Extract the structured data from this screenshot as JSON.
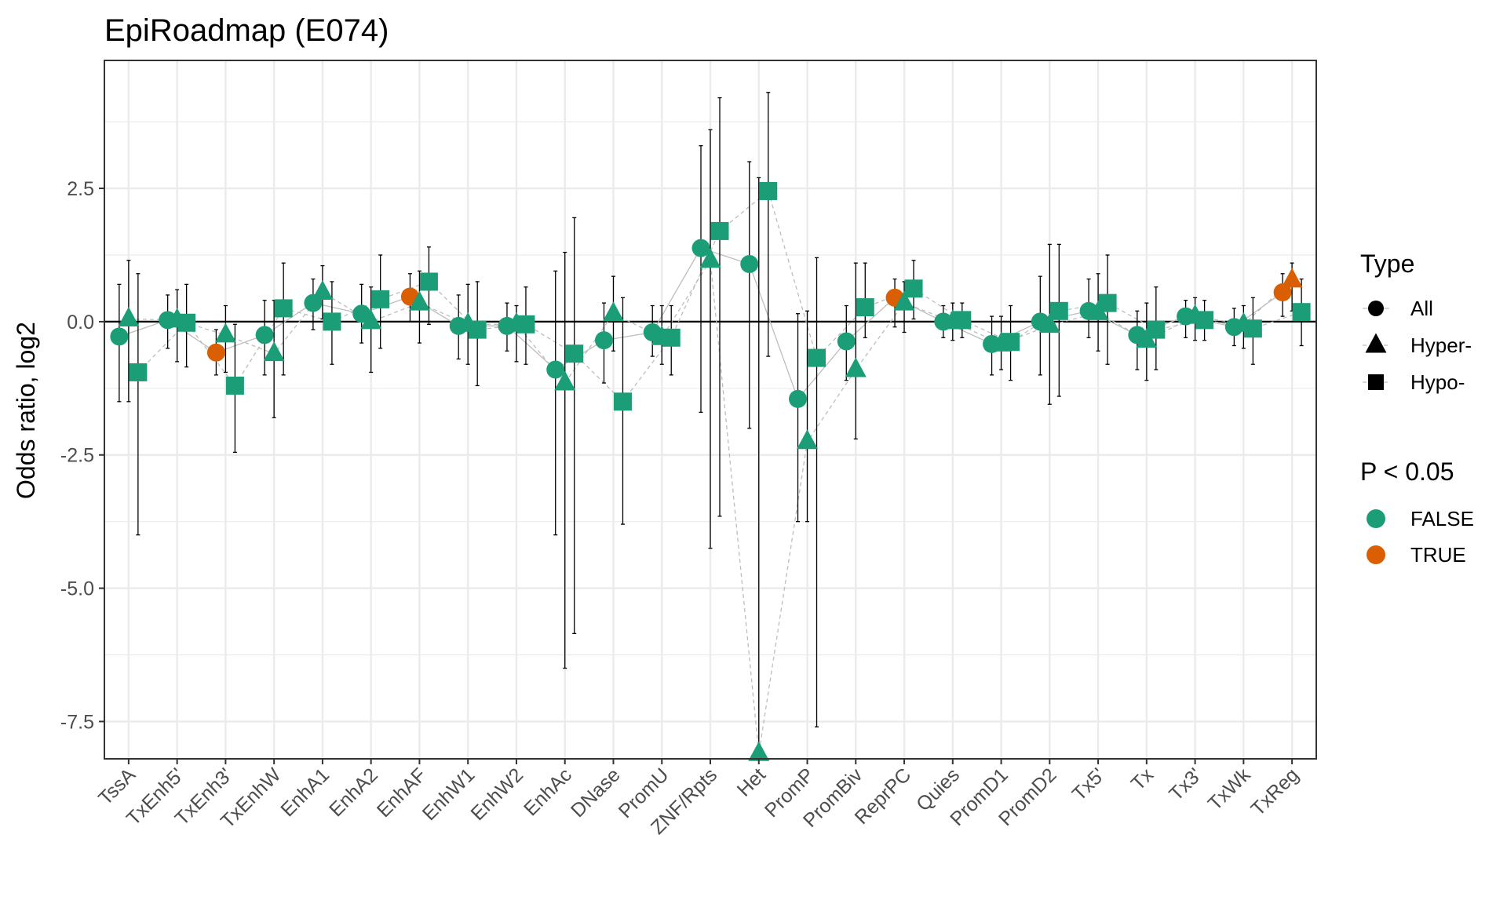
{
  "chart_data": {
    "type": "scatter",
    "title": "EpiRoadmap (E074)",
    "xlabel": "",
    "ylabel": "Odds ratio, log2",
    "ylim": [
      -8.2,
      4.9
    ],
    "yticks": [
      2.5,
      0.0,
      -2.5,
      -5.0,
      -7.5
    ],
    "ytick_labels": [
      "2.5",
      "0.0",
      "-2.5",
      "-5.0",
      "-7.5"
    ],
    "categories": [
      "TssA",
      "TxEnh5'",
      "TxEnh3'",
      "TxEnhW",
      "EnhA1",
      "EnhA2",
      "EnhAF",
      "EnhW1",
      "EnhW2",
      "EnhAc",
      "DNase",
      "PromU",
      "ZNF/Rpts",
      "Het",
      "PromP",
      "PromBiv",
      "ReprPC",
      "Quies",
      "PromD1",
      "PromD2",
      "Tx5'",
      "Tx",
      "Tx3'",
      "TxWk",
      "TxReg"
    ],
    "series": [
      {
        "name": "All",
        "shape": "circle",
        "values": [
          -0.28,
          0.03,
          -0.58,
          -0.25,
          0.35,
          0.15,
          0.47,
          -0.08,
          -0.08,
          -0.9,
          -0.35,
          -0.2,
          1.38,
          1.08,
          -1.45,
          -0.37,
          0.45,
          0.0,
          -0.42,
          0.0,
          0.2,
          -0.25,
          0.1,
          -0.1,
          0.55
        ],
        "lower": [
          -1.5,
          -0.5,
          -1.0,
          -1.0,
          -0.15,
          -0.4,
          0.0,
          -0.7,
          -0.55,
          -4.0,
          -1.15,
          -0.65,
          -1.7,
          -2.0,
          -3.75,
          -1.1,
          -0.1,
          -0.3,
          -1.0,
          -1.0,
          -0.3,
          -0.9,
          -0.3,
          -0.45,
          0.1
        ],
        "upper": [
          0.7,
          0.5,
          -0.15,
          0.4,
          0.8,
          0.7,
          0.9,
          0.5,
          0.35,
          0.95,
          0.35,
          0.3,
          3.3,
          3.0,
          0.15,
          0.3,
          0.8,
          0.3,
          0.1,
          0.85,
          0.8,
          0.2,
          0.4,
          0.25,
          0.9
        ],
        "significant": [
          false,
          false,
          true,
          false,
          false,
          false,
          true,
          false,
          false,
          false,
          false,
          false,
          false,
          false,
          false,
          false,
          true,
          false,
          false,
          false,
          false,
          false,
          false,
          false,
          true
        ]
      },
      {
        "name": "Hyper-",
        "shape": "triangle",
        "values": [
          0.05,
          0.03,
          -0.25,
          -0.6,
          0.55,
          0.0,
          0.35,
          -0.05,
          -0.05,
          -1.15,
          0.15,
          -0.3,
          1.15,
          -8.1,
          -2.25,
          -0.9,
          0.35,
          0.0,
          -0.42,
          -0.07,
          0.17,
          -0.35,
          0.1,
          -0.05,
          0.78
        ],
        "lower": [
          -1.5,
          -0.75,
          -0.95,
          -1.8,
          0.05,
          -0.95,
          -0.4,
          -0.8,
          -0.75,
          -6.5,
          -0.55,
          -0.8,
          -4.25,
          -8.2,
          -3.75,
          -2.2,
          -0.2,
          -0.35,
          -0.9,
          -1.55,
          -0.55,
          -1.1,
          -0.35,
          -0.5,
          0.2
        ],
        "upper": [
          1.15,
          0.6,
          0.3,
          0.4,
          1.05,
          0.65,
          0.95,
          0.7,
          0.3,
          1.3,
          0.85,
          0.3,
          3.6,
          2.7,
          0.2,
          1.1,
          0.75,
          0.35,
          0.1,
          1.45,
          0.9,
          0.35,
          0.45,
          0.3,
          1.1
        ],
        "significant": [
          false,
          false,
          false,
          false,
          false,
          false,
          false,
          false,
          false,
          false,
          false,
          false,
          false,
          false,
          false,
          false,
          false,
          false,
          false,
          false,
          false,
          false,
          false,
          false,
          true
        ]
      },
      {
        "name": "Hypo-",
        "shape": "square",
        "values": [
          -0.95,
          -0.02,
          -1.2,
          0.25,
          0.0,
          0.42,
          0.75,
          -0.15,
          -0.05,
          -0.6,
          -1.5,
          -0.3,
          1.7,
          2.45,
          -0.68,
          0.27,
          0.62,
          0.03,
          -0.38,
          0.2,
          0.35,
          -0.15,
          0.03,
          -0.13,
          0.18
        ],
        "lower": [
          -4.0,
          -0.85,
          -2.45,
          -1.0,
          -0.8,
          -0.5,
          -0.05,
          -1.2,
          -0.8,
          -5.85,
          -3.8,
          -1.0,
          -3.65,
          -0.65,
          -7.6,
          -0.3,
          0.05,
          -0.3,
          -1.1,
          -1.4,
          -0.8,
          -0.9,
          -0.35,
          -0.8,
          -0.45
        ],
        "upper": [
          0.9,
          0.7,
          -0.05,
          1.1,
          0.75,
          1.25,
          1.4,
          0.75,
          0.65,
          1.95,
          0.45,
          0.3,
          4.2,
          4.3,
          1.2,
          1.1,
          1.15,
          0.35,
          0.3,
          1.45,
          1.25,
          0.65,
          0.4,
          0.45,
          0.8
        ]
      }
    ],
    "legend": {
      "placement": "right",
      "type_title": "Type",
      "type_items": [
        "All",
        "Hyper-",
        "Hypo-"
      ],
      "p_title": "P < 0.05",
      "p_items": [
        "FALSE",
        "TRUE"
      ]
    },
    "colors": {
      "false": "#1b9e77",
      "true": "#d95f02",
      "grid": "#ebebeb",
      "connector": "#bdbdbd",
      "errorbar": "#000000",
      "panel_border": "#333333"
    },
    "grid": true,
    "reference_line_y": 0
  }
}
